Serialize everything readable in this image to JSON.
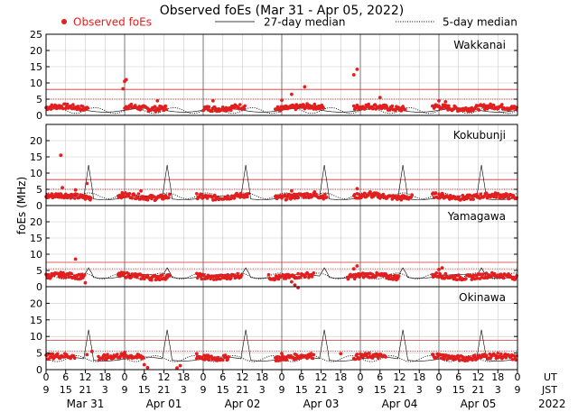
{
  "chart_data": {
    "type": "scatter",
    "title": "Observed foEs (Mar 31 - Apr 05, 2022)",
    "ylabel": "foEs (MHz)",
    "ylim": [
      0,
      25
    ],
    "yticks": [
      0,
      5,
      10,
      15,
      20,
      25
    ],
    "legend": {
      "observed": "Observed foEs",
      "median27": "27-day median",
      "median5": "5-day median",
      "placement": "top"
    },
    "colors": {
      "observed": "#e21e1e",
      "threshold": "#cc3333",
      "grid": "#c8c8c8"
    },
    "ut_ticks": [
      "0",
      "6",
      "12",
      "18",
      "0",
      "6",
      "12",
      "18",
      "0",
      "6",
      "12",
      "18",
      "0",
      "6",
      "12",
      "18",
      "0",
      "6",
      "12",
      "18",
      "0",
      "6",
      "12",
      "18",
      "0"
    ],
    "jst_ticks": [
      "9",
      "15",
      "21",
      "3",
      "9",
      "15",
      "21",
      "3",
      "9",
      "15",
      "21",
      "3",
      "9",
      "15",
      "21",
      "3",
      "9",
      "15",
      "21",
      "3",
      "9",
      "15",
      "21",
      "3",
      "9"
    ],
    "ut_label": "UT",
    "jst_label": "JST",
    "days": [
      "Mar 31",
      "Apr 01",
      "Apr 02",
      "Apr 03",
      "Apr 04",
      "Apr 05"
    ],
    "year": "2022",
    "x_range_hours": [
      0,
      144
    ],
    "panels": [
      {
        "station": "Wakkanai",
        "threshold_high": 8,
        "threshold_low": 5,
        "median27_level": 1.6,
        "median27_spike": 0,
        "median5_level": 1.5,
        "median5_spike": 0,
        "obs_base": 2.4,
        "gaps": [
          [
            13,
            24
          ],
          [
            37,
            48
          ],
          [
            61,
            70
          ],
          [
            85,
            94
          ],
          [
            110,
            118
          ]
        ],
        "outliers": [
          [
            23.5,
            8.2
          ],
          [
            24,
            10.5
          ],
          [
            24.5,
            11
          ],
          [
            34,
            4.5
          ],
          [
            51,
            4.5
          ],
          [
            72,
            4.7
          ],
          [
            75,
            6.5
          ],
          [
            79,
            8.8
          ],
          [
            94,
            12.5
          ],
          [
            95,
            14.2
          ],
          [
            102,
            5.5
          ],
          [
            120,
            4.5
          ],
          [
            122,
            4.2
          ]
        ]
      },
      {
        "station": "Kokubunji",
        "threshold_high": 8,
        "threshold_low": 5,
        "median27_level": 2.4,
        "median27_spike": 12.5,
        "median5_level": 3,
        "median5_spike": 0,
        "obs_base": 2.8,
        "gaps": [
          [
            14,
            22
          ],
          [
            38,
            46
          ],
          [
            62,
            70
          ],
          [
            86,
            94
          ],
          [
            112,
            118
          ]
        ],
        "outliers": [
          [
            4.5,
            15.5
          ],
          [
            5,
            5.5
          ],
          [
            9,
            4.8
          ],
          [
            12.5,
            6.8
          ],
          [
            29,
            4.5
          ],
          [
            75,
            4.5
          ],
          [
            82,
            4.2
          ],
          [
            95,
            5.2
          ],
          [
            99,
            4.2
          ]
        ]
      },
      {
        "station": "Yamagawa",
        "threshold_high": 7.5,
        "threshold_low": 5.5,
        "median27_level": 3.2,
        "median27_spike": 5.8,
        "median5_level": 3.3,
        "median5_spike": 0,
        "obs_base": 3.2,
        "gaps": [
          [
            12,
            22
          ],
          [
            38,
            46
          ],
          [
            60,
            68
          ],
          [
            82,
            92
          ],
          [
            108,
            118
          ]
        ],
        "outliers": [
          [
            9,
            8.5
          ],
          [
            12,
            1.2
          ],
          [
            75,
            1.5
          ],
          [
            76,
            0.5
          ],
          [
            77,
            -0.3
          ],
          [
            94,
            5.5
          ],
          [
            95,
            6.4
          ],
          [
            120,
            5.3
          ],
          [
            121,
            5.8
          ]
        ]
      },
      {
        "station": "Okinawa",
        "threshold_high": 8.8,
        "threshold_low": 5.6,
        "median27_level": 3.2,
        "median27_spike": 12,
        "median5_level": 3.3,
        "median5_spike": 0,
        "obs_base": 3.8,
        "gaps": [
          [
            9,
            16
          ],
          [
            30,
            46
          ],
          [
            56,
            70
          ],
          [
            82,
            94
          ],
          [
            104,
            118
          ]
        ],
        "outliers": [
          [
            12.5,
            4.5
          ],
          [
            14,
            5.5
          ],
          [
            18,
            3
          ],
          [
            24,
            5.2
          ],
          [
            30,
            1.5
          ],
          [
            31,
            0.6
          ],
          [
            40,
            0.5
          ],
          [
            41,
            1.2
          ],
          [
            46,
            4.8
          ],
          [
            72,
            4.9
          ],
          [
            90,
            4.8
          ]
        ]
      }
    ]
  }
}
